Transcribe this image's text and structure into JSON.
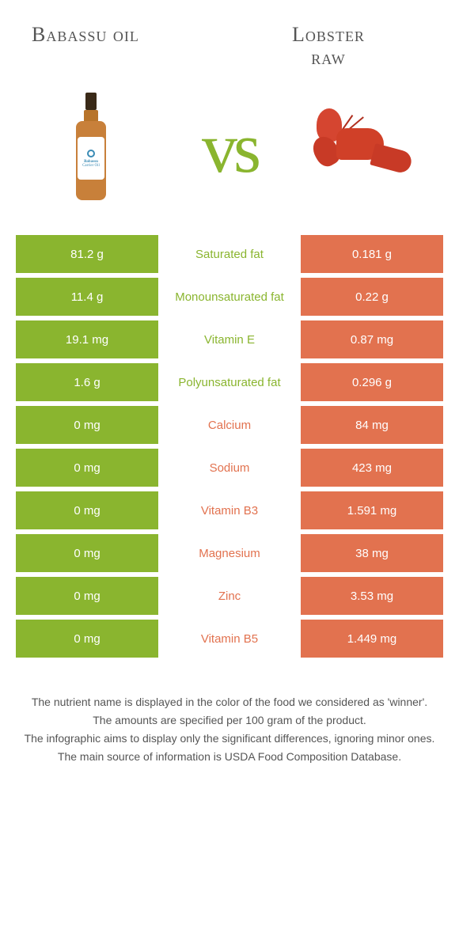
{
  "colors": {
    "green": "#8ab52f",
    "orange": "#e2724f",
    "white": "#ffffff"
  },
  "header": {
    "left_title": "Babassu oil",
    "right_title_line1": "Lobster",
    "right_title_line2": "raw",
    "vs": "vs"
  },
  "left_image_label_top": "Babassu",
  "left_image_label_bottom": "Carrier Oil",
  "rows": [
    {
      "left": "81.2 g",
      "mid": "Saturated fat",
      "right": "0.181 g",
      "winner": "left"
    },
    {
      "left": "11.4 g",
      "mid": "Monounsaturated fat",
      "right": "0.22 g",
      "winner": "left"
    },
    {
      "left": "19.1 mg",
      "mid": "Vitamin E",
      "right": "0.87 mg",
      "winner": "left"
    },
    {
      "left": "1.6 g",
      "mid": "Polyunsaturated fat",
      "right": "0.296 g",
      "winner": "left"
    },
    {
      "left": "0 mg",
      "mid": "Calcium",
      "right": "84 mg",
      "winner": "right"
    },
    {
      "left": "0 mg",
      "mid": "Sodium",
      "right": "423 mg",
      "winner": "right"
    },
    {
      "left": "0 mg",
      "mid": "Vitamin B3",
      "right": "1.591 mg",
      "winner": "right"
    },
    {
      "left": "0 mg",
      "mid": "Magnesium",
      "right": "38 mg",
      "winner": "right"
    },
    {
      "left": "0 mg",
      "mid": "Zinc",
      "right": "3.53 mg",
      "winner": "right"
    },
    {
      "left": "0 mg",
      "mid": "Vitamin B5",
      "right": "1.449 mg",
      "winner": "right"
    }
  ],
  "footer": {
    "line1": "The nutrient name is displayed in the color of the food we considered as 'winner'.",
    "line2": "The amounts are specified per 100 gram of the product.",
    "line3": "The infographic aims to display only the significant differences, ignoring minor ones.",
    "line4": "The main source of information is USDA Food Composition Database."
  }
}
